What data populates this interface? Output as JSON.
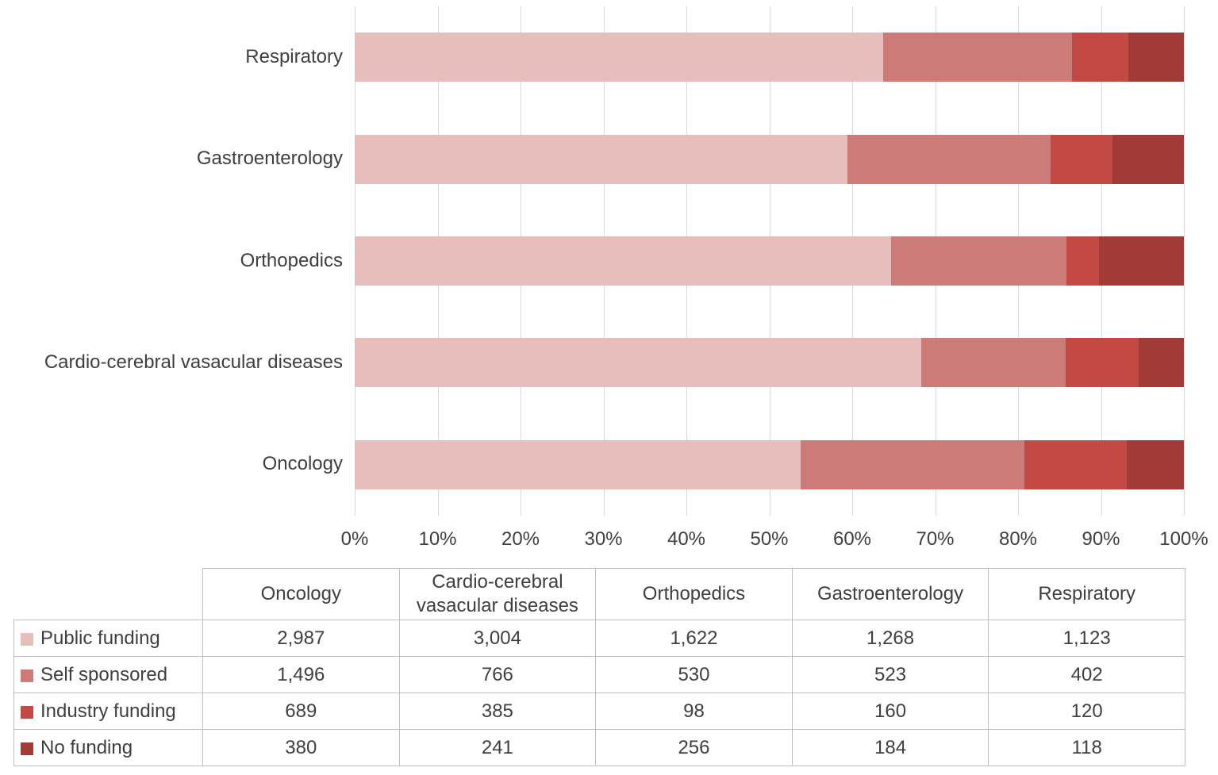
{
  "chart_data": {
    "type": "bar",
    "subtype": "100-percent-stacked-horizontal",
    "title": "",
    "xlabel": "",
    "ylabel": "",
    "categories": [
      "Oncology",
      "Cardio-cerebral vasacular diseases",
      "Orthopedics",
      "Gastroenterology",
      "Respiratory"
    ],
    "category_display_order_top_to_bottom": [
      "Respiratory",
      "Gastroenterology",
      "Orthopedics",
      "Cardio-cerebral vasacular diseases",
      "Oncology"
    ],
    "series": [
      {
        "name": "Public funding",
        "color": "#e8bebd",
        "values": [
          2987,
          3004,
          1622,
          1268,
          1123
        ]
      },
      {
        "name": "Self sponsored",
        "color": "#cd7b78",
        "values": [
          1496,
          766,
          530,
          523,
          402
        ]
      },
      {
        "name": "Industry funding",
        "color": "#c24944",
        "values": [
          689,
          385,
          98,
          160,
          120
        ]
      },
      {
        "name": "No funding",
        "color": "#a23b38",
        "values": [
          380,
          241,
          256,
          184,
          118
        ]
      }
    ],
    "x_ticks": [
      "0%",
      "10%",
      "20%",
      "30%",
      "40%",
      "50%",
      "60%",
      "70%",
      "80%",
      "90%",
      "100%"
    ],
    "xlim": [
      0,
      100
    ],
    "grid": true,
    "legend_position": "table-first-column"
  },
  "colors": {
    "gridline": "#d9d9d9",
    "text": "#3f3f3f",
    "table_border": "#bfbfbf",
    "background": "#ffffff"
  }
}
